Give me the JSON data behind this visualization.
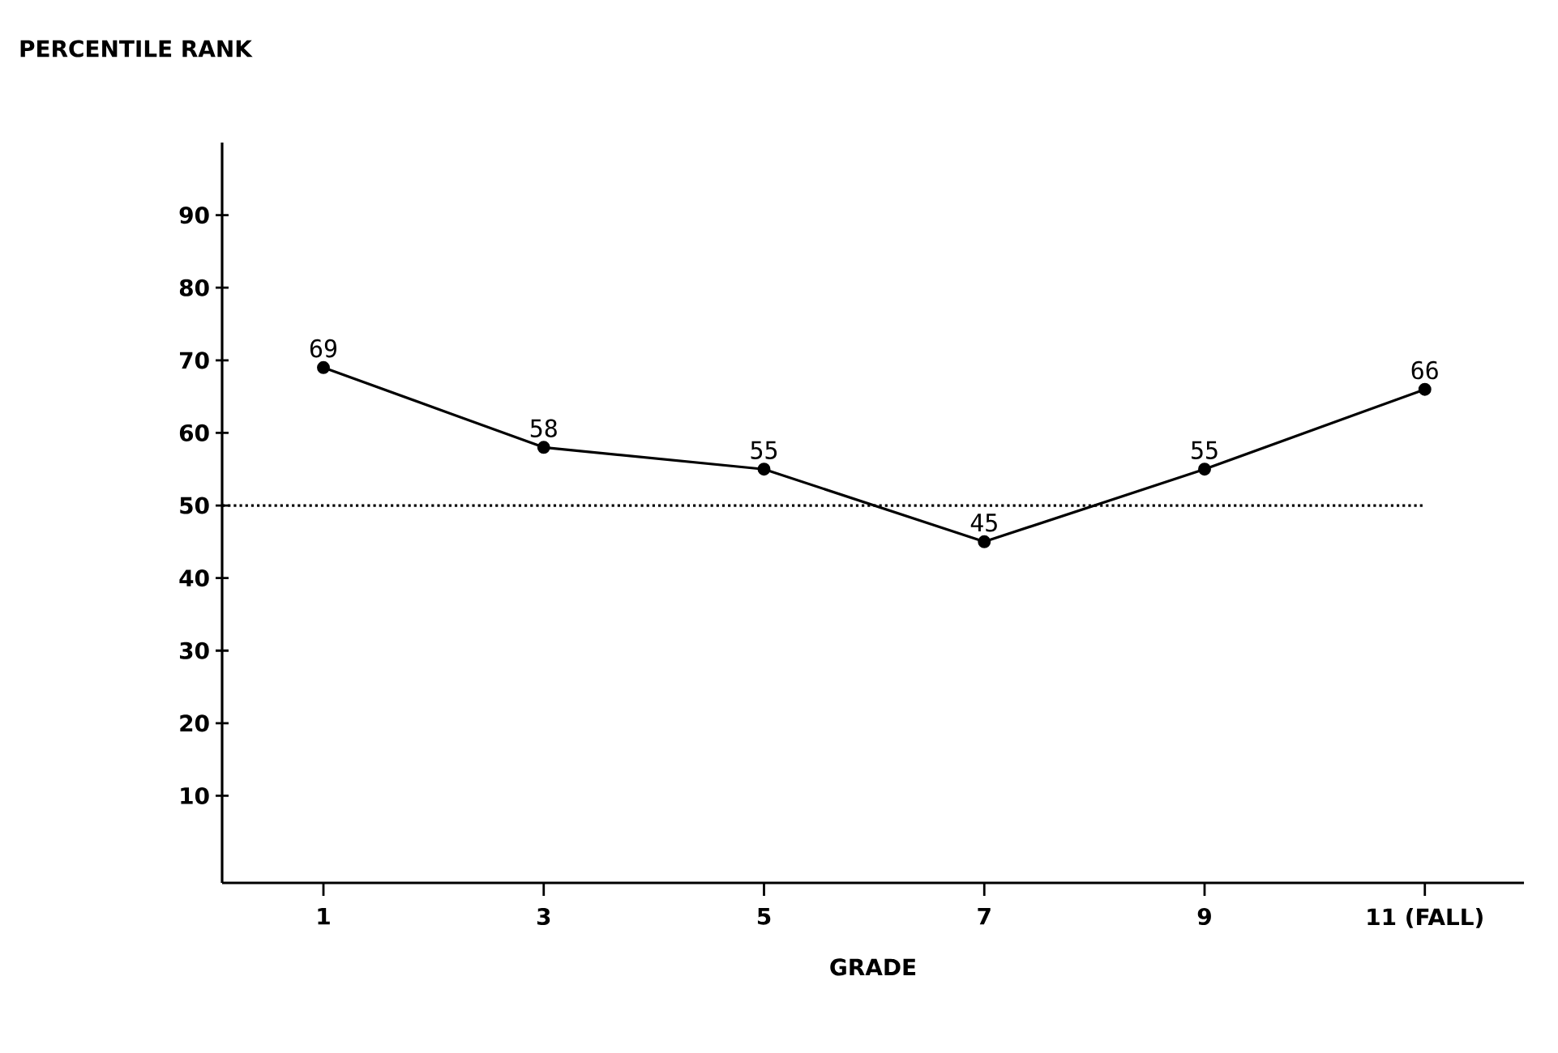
{
  "chart_data": {
    "type": "line",
    "xlabel": "GRADE",
    "ylabel": "PERCENTILE RANK",
    "categories": [
      "1",
      "3",
      "5",
      "7",
      "9",
      "11 (FALL)"
    ],
    "series": [
      {
        "color": "#000000",
        "values": [
          69,
          58,
          55,
          45,
          55,
          66
        ]
      }
    ],
    "ylim": [
      -2,
      100
    ],
    "yticks": [
      10,
      20,
      30,
      40,
      50,
      60,
      70,
      80,
      90
    ],
    "ref_lines": [
      {
        "axis": "y",
        "value": 50,
        "line_style": "dotted"
      }
    ],
    "data_labels": true,
    "marker": "circle",
    "line_style": "solid",
    "grid": false
  }
}
